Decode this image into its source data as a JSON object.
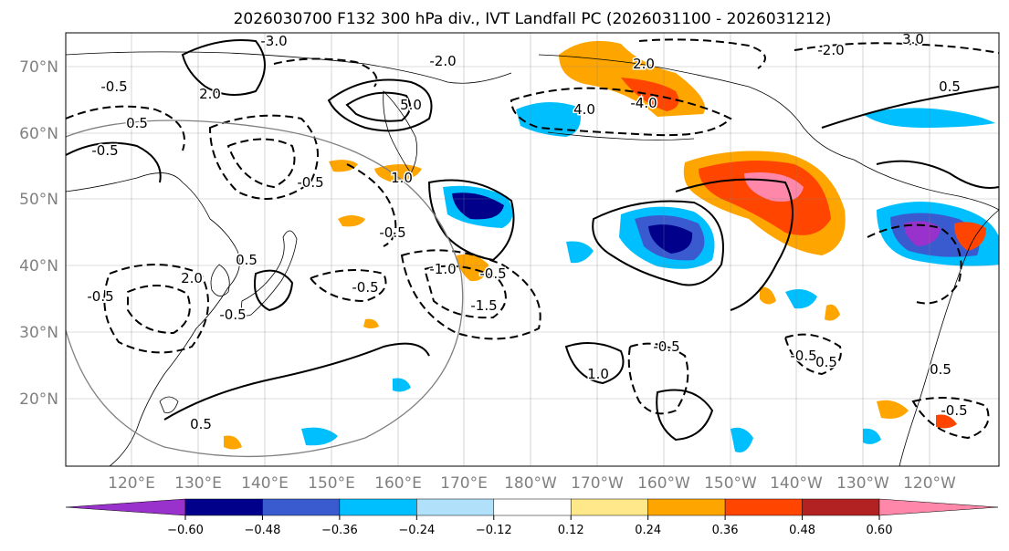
{
  "title": "2026030700 F132 300 hPa div., IVT Landfall PC (2026031100 - 2026031212)",
  "map": {
    "lat_labels": [
      "70°N",
      "60°N",
      "50°N",
      "40°N",
      "30°N",
      "20°N"
    ],
    "lon_labels": [
      "120°E",
      "130°E",
      "140°E",
      "150°E",
      "160°E",
      "170°E",
      "180°W",
      "170°W",
      "160°W",
      "150°W",
      "140°W",
      "130°W",
      "120°W"
    ],
    "contour_labels": [
      "-0.5",
      "-0.5",
      "-0.5",
      "-0.5",
      "-0.5",
      "-0.5",
      "-0.5",
      "-0.5",
      "-0.5",
      "-0.5",
      "0.5",
      "0.5",
      "0.5",
      "0.5",
      "0.5",
      "-1.0",
      "1.0",
      "1.0",
      "-1.5",
      "-2.0",
      "2.0",
      "2.0",
      "2.0",
      "-2.0",
      "-3.0",
      "3.0",
      "-4.0",
      "4.0",
      "5.0",
      "-0.5",
      "0.5"
    ]
  },
  "colorbar": {
    "ticks": [
      "−0.60",
      "−0.48",
      "−0.36",
      "−0.24",
      "−0.12",
      "0.12",
      "0.24",
      "0.36",
      "0.48",
      "0.60"
    ],
    "colors": [
      "#9932cc",
      "#00008b",
      "#3a5bd0",
      "#00bfff",
      "#b0e0fa",
      "#ffffff",
      "#ffe88a",
      "#ffa500",
      "#ff4500",
      "#b22222",
      "#ff88aa"
    ]
  }
}
